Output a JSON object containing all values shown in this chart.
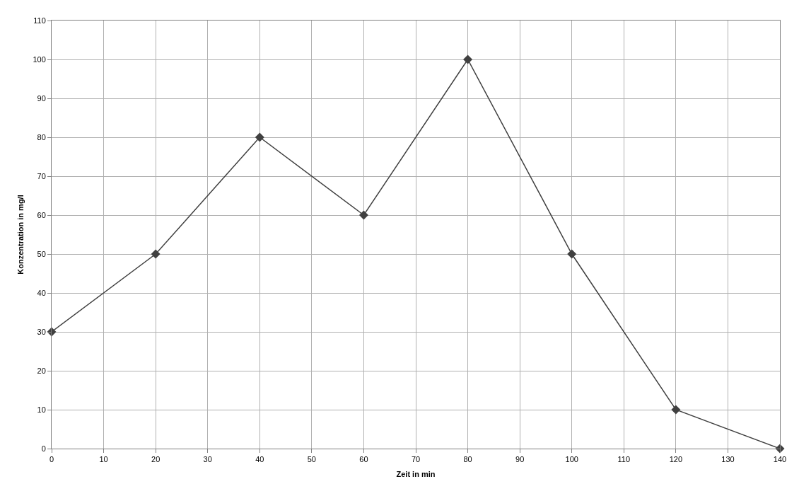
{
  "chart_data": {
    "type": "line",
    "xlabel": "Zeit in min",
    "ylabel": "Konzentration in mg/l",
    "x": [
      0,
      20,
      40,
      60,
      80,
      100,
      120,
      140
    ],
    "series": [
      {
        "color": "#404040",
        "values": [
          30,
          50,
          80,
          60,
          100,
          50,
          10,
          0
        ]
      }
    ],
    "xlim": [
      0,
      140
    ],
    "xticks": [
      0,
      10,
      20,
      30,
      40,
      50,
      60,
      70,
      80,
      90,
      100,
      110,
      120,
      130,
      140
    ],
    "ylim": [
      0,
      110
    ],
    "yticks": [
      0,
      10,
      20,
      30,
      40,
      50,
      60,
      70,
      80,
      90,
      100,
      110
    ],
    "grid": true,
    "marker": "diamond",
    "line_style": "solid"
  }
}
